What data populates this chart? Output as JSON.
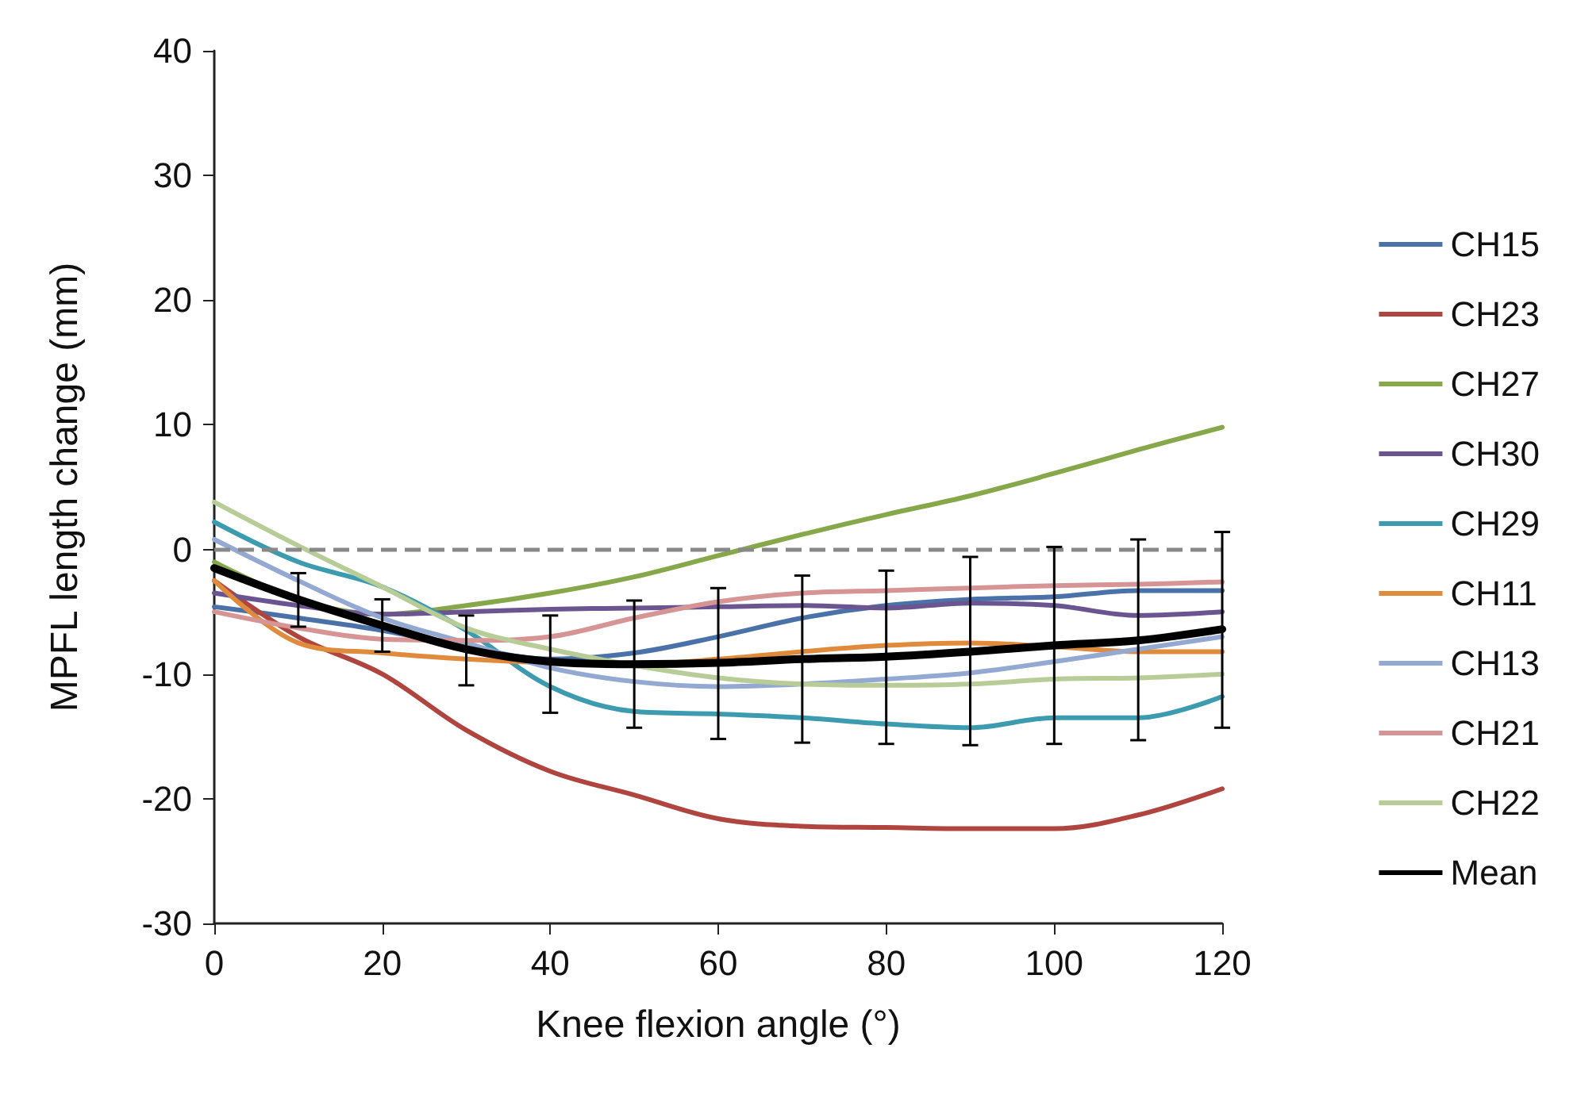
{
  "chart_data": {
    "type": "line",
    "xlabel": "Knee flexion angle (°)",
    "ylabel": "MPFL length change (mm)",
    "x": [
      0,
      10,
      20,
      30,
      40,
      50,
      60,
      70,
      80,
      90,
      100,
      110,
      120
    ],
    "xlim": [
      0,
      120
    ],
    "xticks": [
      0,
      20,
      40,
      60,
      80,
      100,
      120
    ],
    "ylim": [
      -30,
      40
    ],
    "yticks": [
      -30,
      -20,
      -10,
      0,
      10,
      20,
      30,
      40
    ],
    "grid": false,
    "legend": "right",
    "marker": "none",
    "line_style": "solid",
    "ref_lines": [
      {
        "axis": "y",
        "value": 0,
        "color": "#888888",
        "line_style": "dashed"
      }
    ],
    "series": [
      {
        "name": "CH15",
        "color": "#4a72a8",
        "values": [
          -4.6,
          -5.5,
          -6.5,
          -7.8,
          -8.8,
          -8.3,
          -7,
          -5.5,
          -4.5,
          -4,
          -3.8,
          -3.3,
          -3.3
        ]
      },
      {
        "name": "CH23",
        "color": "#b04540",
        "values": [
          -2.5,
          -7,
          -10,
          -14.5,
          -17.8,
          -19.7,
          -21.6,
          -22.2,
          -22.3,
          -22.4,
          -22.4,
          -21.3,
          -19.2
        ]
      },
      {
        "name": "CH27",
        "color": "#86a84a",
        "values": [
          -1,
          -4,
          -5.2,
          -4.5,
          -3.5,
          -2.2,
          -0.5,
          1.2,
          2.8,
          4.3,
          6.1,
          8,
          9.8
        ]
      },
      {
        "name": "CH30",
        "color": "#6b5591",
        "values": [
          -3.5,
          -4.5,
          -5.2,
          -5,
          -4.8,
          -4.7,
          -4.6,
          -4.5,
          -4.7,
          -4.3,
          -4.5,
          -5.3,
          -5
        ]
      },
      {
        "name": "CH29",
        "color": "#3d9bb0",
        "values": [
          2.2,
          -1,
          -3,
          -6.5,
          -11,
          -13,
          -13.2,
          -13.5,
          -14,
          -14.3,
          -13.5,
          -13.5,
          -11.8
        ]
      },
      {
        "name": "CH11",
        "color": "#e08a3c",
        "values": [
          -2.5,
          -7.5,
          -8.3,
          -8.8,
          -9.1,
          -9.2,
          -8.8,
          -8.2,
          -7.7,
          -7.5,
          -7.8,
          -8.2,
          -8.2
        ]
      },
      {
        "name": "CH13",
        "color": "#93a9d2",
        "values": [
          0.8,
          -2.5,
          -5.5,
          -7.5,
          -9.5,
          -10.6,
          -11,
          -10.8,
          -10.4,
          -9.9,
          -9,
          -8,
          -7
        ]
      },
      {
        "name": "CH21",
        "color": "#d69495",
        "values": [
          -5,
          -6.3,
          -7.2,
          -7.3,
          -7,
          -5.5,
          -4.2,
          -3.5,
          -3.3,
          -3.1,
          -2.9,
          -2.8,
          -2.6
        ]
      },
      {
        "name": "CH22",
        "color": "#b7cc96",
        "values": [
          3.8,
          0.3,
          -3,
          -6.3,
          -8,
          -9.3,
          -10.3,
          -10.8,
          -10.9,
          -10.8,
          -10.4,
          -10.3,
          -10
        ]
      },
      {
        "name": "Mean",
        "color": "#000000",
        "values": [
          -1.5,
          -4,
          -6.1,
          -8,
          -9,
          -9.2,
          -9.1,
          -8.8,
          -8.6,
          -8.2,
          -7.7,
          -7.3,
          -6.4
        ],
        "errors": [
          null,
          [
            -6.2,
            -1.9
          ],
          [
            -8.2,
            -4
          ],
          [
            -10.9,
            -5.3
          ],
          [
            -13.1,
            -5.3
          ],
          [
            -14.3,
            -4.1
          ],
          [
            -15.2,
            -3.1
          ],
          [
            -15.5,
            -2.1
          ],
          [
            -15.6,
            -1.7
          ],
          [
            -15.7,
            -0.6
          ],
          [
            -15.6,
            0.2
          ],
          [
            -15.3,
            0.8
          ],
          [
            -14.3,
            1.4
          ]
        ]
      }
    ]
  }
}
